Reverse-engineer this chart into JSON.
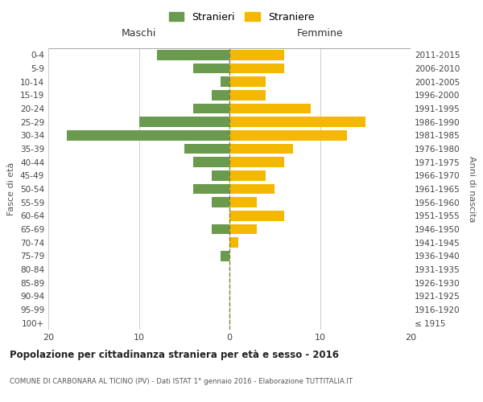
{
  "age_groups": [
    "100+",
    "95-99",
    "90-94",
    "85-89",
    "80-84",
    "75-79",
    "70-74",
    "65-69",
    "60-64",
    "55-59",
    "50-54",
    "45-49",
    "40-44",
    "35-39",
    "30-34",
    "25-29",
    "20-24",
    "15-19",
    "10-14",
    "5-9",
    "0-4"
  ],
  "birth_years": [
    "≤ 1915",
    "1916-1920",
    "1921-1925",
    "1926-1930",
    "1931-1935",
    "1936-1940",
    "1941-1945",
    "1946-1950",
    "1951-1955",
    "1956-1960",
    "1961-1965",
    "1966-1970",
    "1971-1975",
    "1976-1980",
    "1981-1985",
    "1986-1990",
    "1991-1995",
    "1996-2000",
    "2001-2005",
    "2006-2010",
    "2011-2015"
  ],
  "maschi": [
    0,
    0,
    0,
    0,
    0,
    1,
    0,
    2,
    0,
    2,
    4,
    2,
    4,
    5,
    18,
    10,
    4,
    2,
    1,
    4,
    8
  ],
  "femmine": [
    0,
    0,
    0,
    0,
    0,
    0,
    1,
    3,
    6,
    3,
    5,
    4,
    6,
    7,
    13,
    15,
    9,
    4,
    4,
    6,
    6
  ],
  "male_color": "#6a9a4e",
  "female_color": "#f5b800",
  "dashed_line_color": "#808040",
  "grid_color": "#cccccc",
  "bg_color": "#ffffff",
  "title": "Popolazione per cittadinanza straniera per età e sesso - 2016",
  "subtitle": "COMUNE DI CARBONARA AL TICINO (PV) - Dati ISTAT 1° gennaio 2016 - Elaborazione TUTTITALIA.IT",
  "xlabel_left": "Maschi",
  "xlabel_right": "Femmine",
  "ylabel_left": "Fasce di età",
  "ylabel_right": "Anni di nascita",
  "legend_male": "Stranieri",
  "legend_female": "Straniere",
  "xlim": 20
}
